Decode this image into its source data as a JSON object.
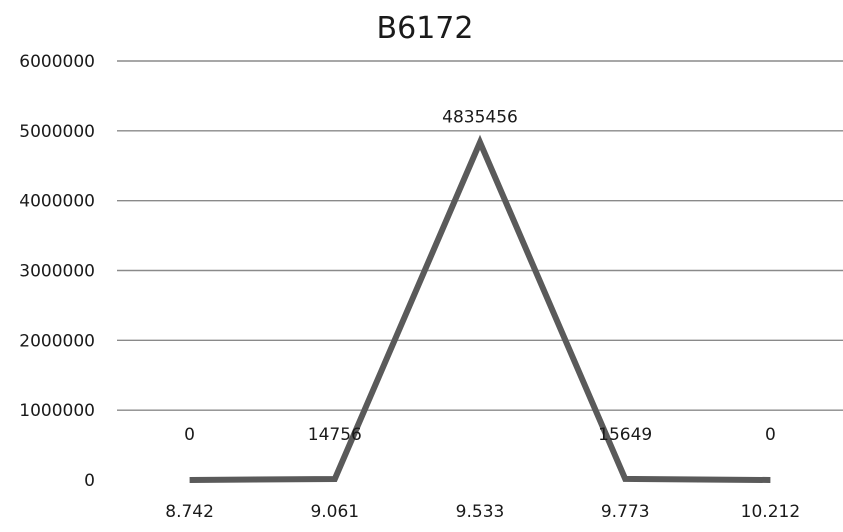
{
  "chart_data": {
    "type": "line",
    "title": "B6172",
    "xlabel": "",
    "ylabel": "",
    "categories": [
      "8.742",
      "9.061",
      "9.533",
      "9.773",
      "10.212"
    ],
    "series": [
      {
        "values": [
          0,
          14756,
          4835456,
          15649,
          0
        ]
      }
    ],
    "data_labels": [
      "0",
      "14756",
      "4835456",
      "15649",
      "0"
    ],
    "y_ticks": [
      "0",
      "1000000",
      "2000000",
      "3000000",
      "4000000",
      "5000000",
      "6000000"
    ],
    "ylim": [
      0,
      6000000
    ],
    "grid": true,
    "legend": "none",
    "colors": {
      "line": "#5a5a5a",
      "grid": "#8a8a8a",
      "text": "#1a1a1a"
    }
  }
}
